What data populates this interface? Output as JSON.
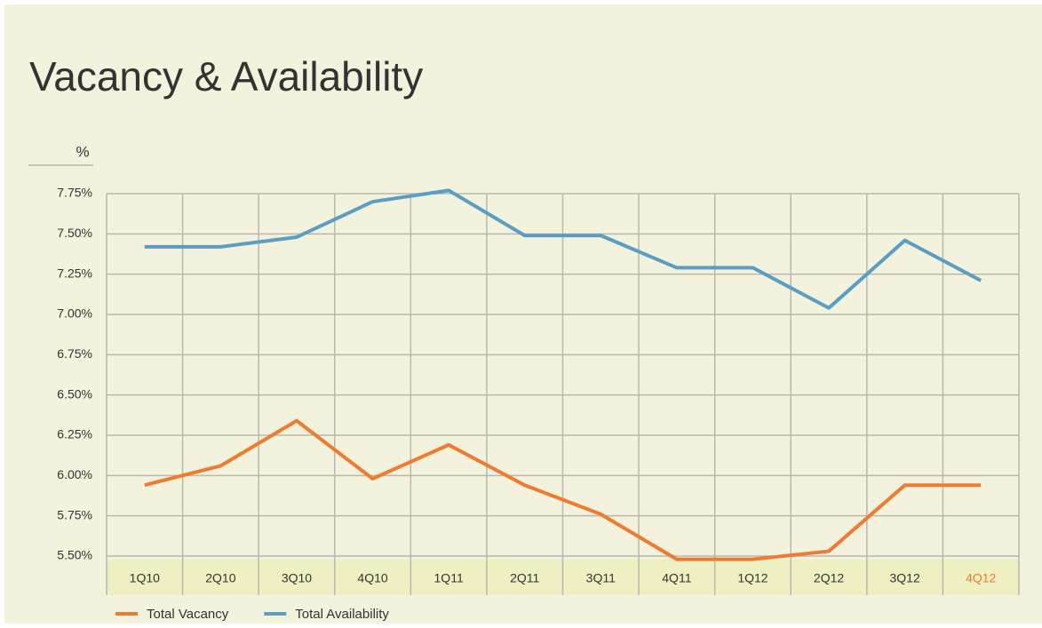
{
  "chart_data": {
    "type": "line",
    "title": "Vacancy & Availability",
    "y_label": "%",
    "categories": [
      "1Q10",
      "2Q10",
      "3Q10",
      "4Q10",
      "1Q11",
      "2Q11",
      "3Q11",
      "4Q11",
      "1Q12",
      "2Q12",
      "3Q12",
      "4Q12"
    ],
    "series": [
      {
        "name": "Total Vacancy",
        "color": "#ee7b30",
        "values": [
          5.94,
          6.06,
          6.34,
          5.98,
          6.19,
          5.94,
          5.76,
          5.48,
          5.48,
          5.53,
          5.94,
          5.94
        ]
      },
      {
        "name": "Total Availability",
        "color": "#5a9ec4",
        "values": [
          7.42,
          7.42,
          7.48,
          7.7,
          7.77,
          7.49,
          7.49,
          7.29,
          7.29,
          7.04,
          7.46,
          7.21
        ]
      }
    ],
    "ylim": [
      5.5,
      7.75
    ],
    "yticks": [
      {
        "value": 5.5,
        "label": "5.50%"
      },
      {
        "value": 5.75,
        "label": "5.75%"
      },
      {
        "value": 6.0,
        "label": "6.00%"
      },
      {
        "value": 6.25,
        "label": "6.25%"
      },
      {
        "value": 6.5,
        "label": "6.50%"
      },
      {
        "value": 6.75,
        "label": "6.75%"
      },
      {
        "value": 7.0,
        "label": "7.00%"
      },
      {
        "value": 7.25,
        "label": "7.25%"
      },
      {
        "value": 7.5,
        "label": "7.50%"
      },
      {
        "value": 7.75,
        "label": "7.75%"
      }
    ],
    "grid": true,
    "legend": "bottom-left",
    "highlight_index": 11,
    "highlight_color": "#ee7b30"
  }
}
